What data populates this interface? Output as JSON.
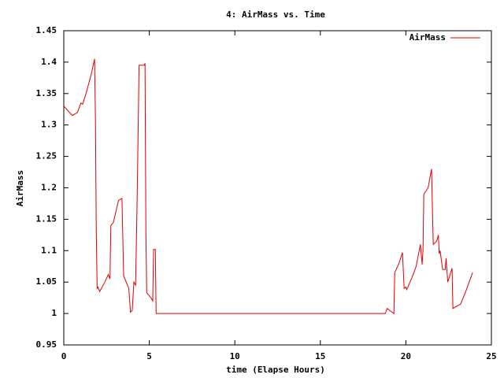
{
  "chart_data": {
    "type": "line",
    "title": "4: AirMass vs. Time",
    "x_label": "time (Elapse Hours)",
    "y_label": "AirMass",
    "legend": "top-right",
    "x": [
      0,
      0.5,
      0.8,
      1.0,
      1.1,
      1.3,
      1.6,
      1.8,
      1.85,
      1.9,
      1.95,
      2.0,
      2.1,
      2.4,
      2.6,
      2.7,
      2.75,
      2.9,
      3.2,
      3.4,
      3.5,
      3.8,
      3.9,
      4.0,
      4.1,
      4.2,
      4.3,
      4.4,
      4.7,
      4.75,
      4.8,
      4.85,
      5.1,
      5.2,
      5.25,
      5.35,
      5.4,
      18.8,
      18.9,
      19.3,
      19.35,
      19.6,
      19.8,
      19.9,
      20.0,
      20.05,
      20.4,
      20.6,
      20.85,
      20.95,
      21.0,
      21.05,
      21.3,
      21.5,
      21.6,
      21.8,
      21.9,
      21.95,
      22.0,
      22.15,
      22.3,
      22.35,
      22.45,
      22.7,
      22.75,
      23.0,
      23.2,
      23.5,
      23.9
    ],
    "series": [
      {
        "name": "AirMass",
        "color": "#e00000",
        "values": [
          1.33,
          1.315,
          1.32,
          1.335,
          1.333,
          1.35,
          1.38,
          1.405,
          1.31,
          1.13,
          1.04,
          1.042,
          1.035,
          1.05,
          1.062,
          1.055,
          1.14,
          1.145,
          1.18,
          1.183,
          1.06,
          1.04,
          1.002,
          1.005,
          1.05,
          1.045,
          1.2,
          1.395,
          1.395,
          1.398,
          1.13,
          1.033,
          1.025,
          1.02,
          1.102,
          1.102,
          1.0,
          1.0,
          1.008,
          1.0,
          1.065,
          1.08,
          1.097,
          1.04,
          1.042,
          1.038,
          1.06,
          1.075,
          1.11,
          1.078,
          1.1,
          1.19,
          1.2,
          1.23,
          1.11,
          1.115,
          1.125,
          1.095,
          1.1,
          1.07,
          1.07,
          1.088,
          1.05,
          1.072,
          1.008,
          1.012,
          1.015,
          1.035,
          1.065
        ]
      }
    ],
    "xlim": [
      0,
      25
    ],
    "xticks": [
      0,
      5,
      10,
      15,
      20,
      25
    ],
    "ylim": [
      0.95,
      1.45
    ],
    "yticks": [
      0.95,
      1,
      1.05,
      1.1,
      1.15,
      1.2,
      1.25,
      1.3,
      1.35,
      1.4,
      1.45
    ]
  }
}
